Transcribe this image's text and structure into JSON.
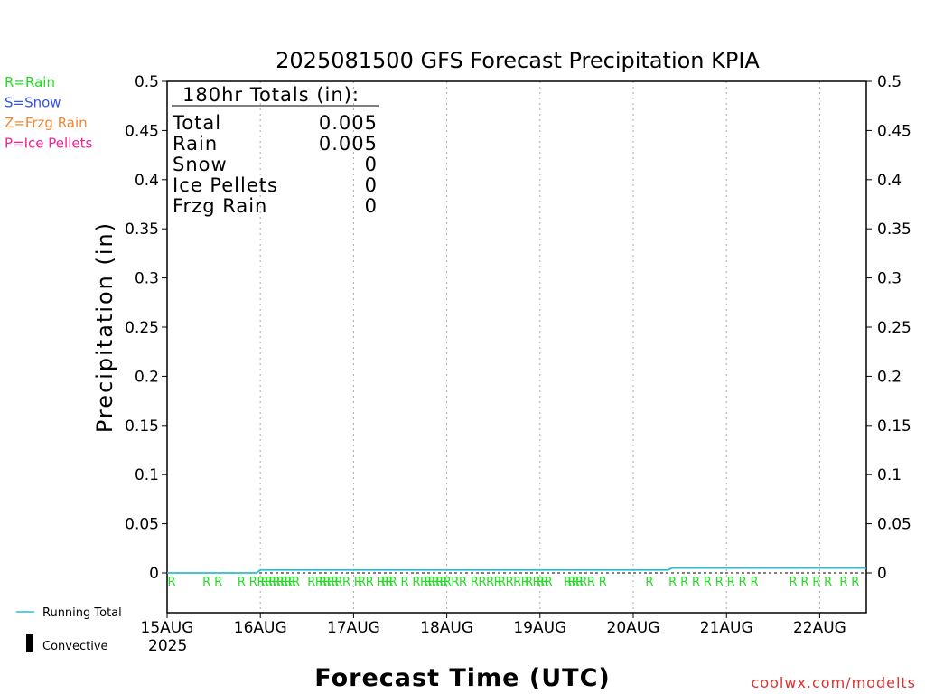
{
  "chart_data": {
    "type": "line",
    "title": "2025081500 GFS Forecast Precipitation KPIA",
    "xlabel": "Forecast Time (UTC)",
    "ylabel": "Precipitation (in)",
    "ylim": [
      0,
      0.5
    ],
    "xlim_hours": [
      0,
      180
    ],
    "yticks": [
      "0",
      "0.05",
      "0.1",
      "0.15",
      "0.2",
      "0.25",
      "0.3",
      "0.35",
      "0.4",
      "0.45",
      "0.5"
    ],
    "xticks": [
      {
        "label": "15AUG",
        "hour": 0
      },
      {
        "label": "16AUG",
        "hour": 24
      },
      {
        "label": "17AUG",
        "hour": 48
      },
      {
        "label": "18AUG",
        "hour": 72
      },
      {
        "label": "19AUG",
        "hour": 96
      },
      {
        "label": "20AUG",
        "hour": 120
      },
      {
        "label": "21AUG",
        "hour": 144
      },
      {
        "label": "22AUG",
        "hour": 168
      }
    ],
    "year_label": "2025",
    "grid": "vertical dotted",
    "legend": [
      {
        "label": "R=Rain",
        "color": "#22dd22"
      },
      {
        "label": "S=Snow",
        "color": "#3355ee"
      },
      {
        "label": "Z=Frzg Rain",
        "color": "#ee8833"
      },
      {
        "label": "P=Ice Pellets",
        "color": "#ee2299"
      }
    ],
    "bottom_legend": [
      {
        "label": "Running Total",
        "color": "#33bbcc",
        "symbol": "line"
      },
      {
        "label": "Convective",
        "color": "#000000",
        "symbol": "bar"
      }
    ],
    "totals": {
      "heading": "180hr Totals (in):",
      "rows": [
        {
          "label": "Total",
          "value": "0.005"
        },
        {
          "label": "Rain",
          "value": "0.005"
        },
        {
          "label": "Snow",
          "value": "0"
        },
        {
          "label": "Ice Pellets",
          "value": "0"
        },
        {
          "label": "Frzg Rain",
          "value": "0"
        }
      ]
    },
    "series": [
      {
        "name": "Running Total",
        "color": "#33bbcc",
        "x": [
          0,
          23,
          24,
          129,
          130,
          180
        ],
        "y": [
          0,
          0,
          0.003,
          0.003,
          0.005,
          0.005
        ]
      }
    ],
    "precip_type_marks": {
      "symbol": "R",
      "color": "#22dd22",
      "hours": [
        0,
        9,
        12,
        18,
        21,
        23,
        24,
        25,
        26,
        27,
        28,
        29,
        30,
        31,
        32,
        36,
        38,
        39,
        40,
        41,
        42,
        43,
        45,
        48,
        49,
        51,
        54,
        55,
        56,
        57,
        60,
        63,
        65,
        66,
        67,
        68,
        69,
        70,
        71,
        73,
        75,
        78,
        80,
        82,
        84,
        85,
        87,
        89,
        91,
        92,
        94,
        95,
        96,
        97,
        102,
        103,
        104,
        105,
        106,
        108,
        111,
        123,
        129,
        132,
        135,
        138,
        141,
        144,
        147,
        150,
        160,
        163,
        166,
        169,
        173,
        176
      ]
    },
    "watermark": "coolwx.com/modelts"
  }
}
